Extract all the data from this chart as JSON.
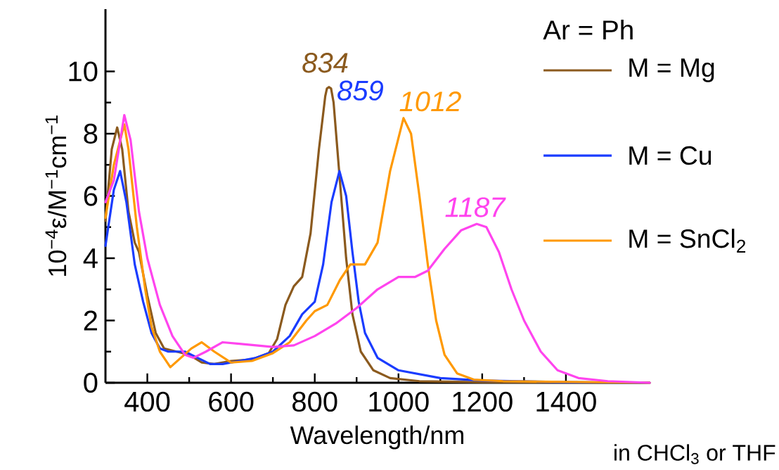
{
  "chart_data": {
    "type": "line",
    "xlabel": "Wavelength/nm",
    "ylabel": "10$^{−4}$ε/M$^{−1}$cm$^{−1}$",
    "legend_title": "Ar = Ph",
    "legend": "top right",
    "marker": "none",
    "line_style": "solid",
    "xlim": [
      300,
      1600
    ],
    "ylim": [
      0,
      12
    ],
    "xticks": [
      400,
      600,
      800,
      1000,
      1200,
      1400
    ],
    "yticks": [
      0,
      2,
      4,
      6,
      8,
      10
    ],
    "series": [
      {
        "name": "M = Mg",
        "color": "#8b5a1e",
        "x": [
          300,
          315,
          328,
          340,
          355,
          370,
          380,
          400,
          420,
          440,
          470,
          500,
          530,
          560,
          600,
          650,
          690,
          710,
          730,
          750,
          770,
          790,
          810,
          825,
          829,
          834,
          839,
          845,
          860,
          875,
          890,
          910,
          940,
          980,
          1050,
          1200,
          1600
        ],
        "values": [
          5.2,
          7.5,
          8.2,
          7.5,
          5.5,
          4.5,
          4.2,
          2.8,
          1.6,
          1.1,
          1.0,
          0.9,
          0.65,
          0.6,
          0.7,
          0.75,
          0.95,
          1.4,
          2.5,
          3.1,
          3.4,
          4.8,
          7.5,
          9.2,
          9.45,
          9.5,
          9.45,
          9.0,
          6.5,
          4.0,
          2.2,
          1.0,
          0.4,
          0.15,
          0.05,
          0.02,
          0
        ]
      },
      {
        "name": "M = Cu",
        "color": "#1a3cff",
        "x": [
          300,
          320,
          335,
          350,
          370,
          390,
          410,
          430,
          450,
          490,
          520,
          550,
          580,
          620,
          660,
          700,
          740,
          770,
          800,
          820,
          840,
          859,
          875,
          890,
          905,
          920,
          950,
          1000,
          1100,
          1200,
          1400,
          1600
        ],
        "values": [
          4.4,
          6.2,
          6.8,
          5.8,
          3.8,
          2.6,
          1.6,
          1.1,
          1.0,
          1.0,
          0.8,
          0.6,
          0.6,
          0.7,
          0.8,
          1.0,
          1.5,
          2.2,
          2.6,
          3.8,
          5.8,
          6.8,
          6.0,
          4.2,
          2.6,
          1.6,
          0.8,
          0.4,
          0.15,
          0.07,
          0.02,
          0
        ]
      },
      {
        "name": "M = SnCl$_{2}$",
        "color": "#ff9900",
        "x": [
          300,
          320,
          345,
          355,
          375,
          395,
          410,
          430,
          455,
          480,
          505,
          530,
          560,
          600,
          650,
          700,
          740,
          780,
          800,
          830,
          860,
          885,
          920,
          950,
          980,
          1012,
          1030,
          1050,
          1070,
          1090,
          1110,
          1140,
          1180,
          1250,
          1600
        ],
        "values": [
          5.3,
          7.0,
          8.3,
          7.5,
          5.0,
          3.0,
          1.8,
          1.0,
          0.5,
          0.8,
          1.1,
          1.3,
          1.0,
          0.65,
          0.7,
          0.95,
          1.3,
          2.0,
          2.3,
          2.5,
          3.3,
          3.8,
          3.8,
          4.5,
          6.8,
          8.5,
          8.0,
          6.0,
          3.8,
          2.0,
          0.9,
          0.3,
          0.1,
          0.05,
          0
        ]
      },
      {
        "color": "#ff44ee",
        "x": [
          300,
          320,
          345,
          360,
          380,
          400,
          430,
          460,
          490,
          510,
          540,
          580,
          620,
          660,
          700,
          750,
          800,
          850,
          900,
          950,
          1000,
          1040,
          1070,
          1110,
          1150,
          1187,
          1210,
          1240,
          1270,
          1300,
          1340,
          1380,
          1430,
          1500,
          1600
        ],
        "values": [
          5.8,
          6.5,
          8.6,
          7.8,
          5.5,
          4.0,
          2.5,
          1.5,
          0.9,
          0.8,
          1.0,
          1.3,
          1.25,
          1.2,
          1.15,
          1.2,
          1.5,
          1.9,
          2.4,
          3.0,
          3.4,
          3.4,
          3.6,
          4.3,
          4.9,
          5.1,
          5.0,
          4.2,
          3.0,
          2.0,
          1.0,
          0.4,
          0.15,
          0.05,
          0
        ]
      }
    ],
    "annotations": [
      {
        "text": "834",
        "x": 834,
        "y": 9.5
      },
      {
        "text": "859",
        "x": 859,
        "y": 6.8
      },
      {
        "text": "1012",
        "x": 1012,
        "y": 8.5
      },
      {
        "text": "1187",
        "x": 1187,
        "y": 5.1
      },
      "in CHCl$_{3}$ or  THF"
    ]
  }
}
